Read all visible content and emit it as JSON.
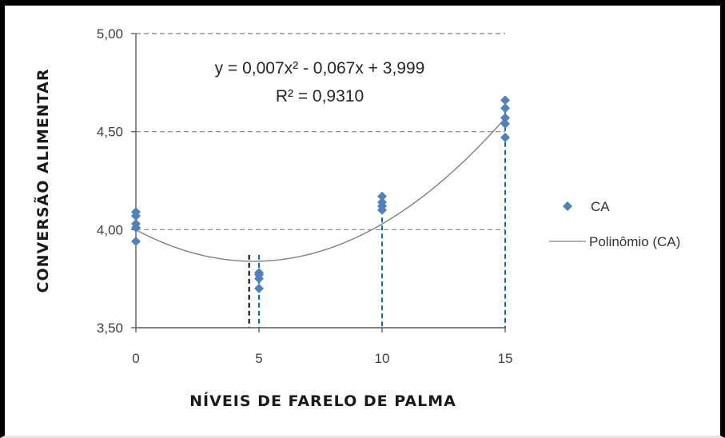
{
  "chart_data": {
    "type": "scatter",
    "xlabel": "NÍVEIS DE FARELO DE PALMA",
    "ylabel": "CONVERSÃO  ALIMENTAR",
    "xlim": [
      0,
      15
    ],
    "ylim": [
      3.5,
      5.0
    ],
    "x_ticks": [
      "0",
      "5",
      "10",
      "15"
    ],
    "y_ticks": [
      "3,50",
      "4,00",
      "4,50",
      "5,00"
    ],
    "grid": "horizontal dashed",
    "legend": "right",
    "series": [
      {
        "name": "CA",
        "marker": "diamond",
        "color": "#4f81bd",
        "points": [
          {
            "x": 0,
            "y": 4.09
          },
          {
            "x": 0,
            "y": 4.07
          },
          {
            "x": 0,
            "y": 4.03
          },
          {
            "x": 0,
            "y": 4.01
          },
          {
            "x": 0,
            "y": 3.94
          },
          {
            "x": 5,
            "y": 3.78
          },
          {
            "x": 5,
            "y": 3.77
          },
          {
            "x": 5,
            "y": 3.75
          },
          {
            "x": 5,
            "y": 3.7
          },
          {
            "x": 10,
            "y": 4.17
          },
          {
            "x": 10,
            "y": 4.14
          },
          {
            "x": 10,
            "y": 4.12
          },
          {
            "x": 10,
            "y": 4.1
          },
          {
            "x": 15,
            "y": 4.66
          },
          {
            "x": 15,
            "y": 4.62
          },
          {
            "x": 15,
            "y": 4.57
          },
          {
            "x": 15,
            "y": 4.54
          },
          {
            "x": 15,
            "y": 4.47
          }
        ]
      },
      {
        "name": "Polinômio (CA)",
        "type": "line",
        "color": "#808080",
        "fit": {
          "a": 0.007,
          "b": -0.067,
          "c": 3.999
        }
      }
    ],
    "annotations": {
      "equation": "y = 0,007x² - 0,067x + 3,999",
      "r2": "R² = 0,9310"
    },
    "drop_lines": [
      {
        "x": 4.6,
        "color": "#000000"
      },
      {
        "x": 5,
        "color": "#0070c0"
      },
      {
        "x": 10,
        "color": "#0070c0"
      },
      {
        "x": 15,
        "color": "#0070c0"
      }
    ]
  }
}
